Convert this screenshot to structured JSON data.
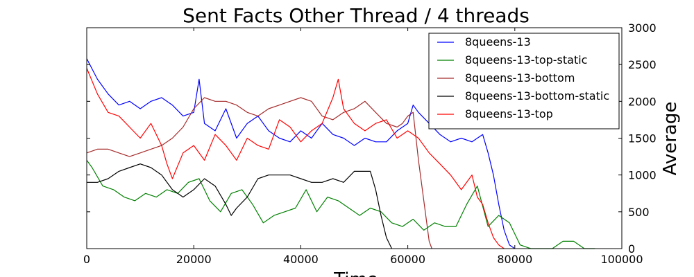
{
  "chart_data": {
    "type": "line",
    "title": "Sent Facts Other Thread / 4 threads",
    "xlabel": "Time",
    "ylabel": "Average",
    "xlim": [
      0,
      100000
    ],
    "ylim": [
      0,
      3000
    ],
    "x_ticks": [
      "0",
      "20000",
      "40000",
      "60000",
      "80000",
      "100000"
    ],
    "y_ticks": [
      "0",
      "500",
      "1000",
      "1500",
      "2000",
      "2500",
      "3000"
    ],
    "y_axis_side": "right",
    "grid": false,
    "legend_position": "top-right",
    "series": [
      {
        "name": "8queens-13",
        "color": "#0000ff",
        "x": [
          0,
          2000,
          4000,
          6000,
          8000,
          10000,
          12000,
          14000,
          16000,
          18000,
          20000,
          21000,
          22000,
          24000,
          26000,
          28000,
          30000,
          32000,
          34000,
          36000,
          38000,
          40000,
          42000,
          44000,
          46000,
          48000,
          50000,
          52000,
          54000,
          56000,
          58000,
          60000,
          61000,
          62000,
          64000,
          66000,
          68000,
          70000,
          72000,
          74000,
          75000,
          76000,
          77000,
          78000,
          79000,
          80000
        ],
        "y": [
          2580,
          2300,
          2100,
          1950,
          2000,
          1900,
          2000,
          2050,
          1950,
          1800,
          1850,
          2300,
          1700,
          1600,
          1900,
          1500,
          1700,
          1800,
          1600,
          1500,
          1450,
          1600,
          1500,
          1700,
          1550,
          1500,
          1400,
          1500,
          1450,
          1450,
          1600,
          1700,
          1950,
          1850,
          1700,
          1550,
          1450,
          1500,
          1450,
          1550,
          1300,
          1000,
          600,
          250,
          50,
          0
        ]
      },
      {
        "name": "8queens-13-top-static",
        "color": "#008000",
        "x": [
          0,
          1000,
          3000,
          5000,
          7000,
          9000,
          11000,
          13000,
          15000,
          17000,
          19000,
          21000,
          23000,
          25000,
          27000,
          29000,
          31000,
          33000,
          35000,
          37000,
          39000,
          41000,
          43000,
          45000,
          47000,
          49000,
          51000,
          53000,
          55000,
          57000,
          59000,
          61000,
          63000,
          65000,
          67000,
          69000,
          71000,
          73000,
          75000,
          77000,
          79000,
          81000,
          83000,
          85000,
          87000,
          89000,
          91000,
          93000,
          95000
        ],
        "y": [
          1200,
          1100,
          850,
          800,
          700,
          650,
          750,
          700,
          800,
          750,
          900,
          950,
          650,
          500,
          750,
          800,
          600,
          350,
          450,
          500,
          550,
          800,
          500,
          700,
          650,
          550,
          450,
          550,
          500,
          350,
          300,
          400,
          250,
          350,
          300,
          300,
          600,
          850,
          300,
          450,
          350,
          50,
          0,
          0,
          0,
          100,
          100,
          0,
          0
        ]
      },
      {
        "name": "8queens-13-bottom",
        "color": "#a52a2a",
        "x": [
          0,
          2000,
          4000,
          6000,
          8000,
          10000,
          12000,
          14000,
          16000,
          18000,
          20000,
          22000,
          24000,
          26000,
          28000,
          30000,
          32000,
          34000,
          36000,
          38000,
          40000,
          42000,
          44000,
          46000,
          48000,
          50000,
          52000,
          54000,
          56000,
          58000,
          59000,
          60000,
          61000,
          62000,
          63000,
          64000,
          64500
        ],
        "y": [
          1300,
          1350,
          1350,
          1300,
          1250,
          1300,
          1350,
          1400,
          1500,
          1650,
          1900,
          2050,
          2000,
          2000,
          1950,
          1850,
          1800,
          1900,
          1950,
          2000,
          2050,
          2000,
          1800,
          1750,
          1850,
          1900,
          2000,
          1850,
          1700,
          1650,
          1700,
          1800,
          1850,
          1200,
          650,
          100,
          0
        ]
      },
      {
        "name": "8queens-13-bottom-static",
        "color": "#000000",
        "x": [
          0,
          2000,
          4000,
          6000,
          8000,
          10000,
          12000,
          14000,
          16000,
          18000,
          20000,
          22000,
          24000,
          26000,
          27000,
          28000,
          30000,
          32000,
          34000,
          36000,
          38000,
          40000,
          42000,
          44000,
          46000,
          48000,
          50000,
          52000,
          53000,
          54000,
          55000,
          56000,
          57000
        ],
        "y": [
          900,
          900,
          950,
          1050,
          1100,
          1150,
          1100,
          1000,
          800,
          700,
          800,
          950,
          850,
          600,
          450,
          550,
          700,
          950,
          1000,
          1000,
          1000,
          950,
          900,
          900,
          950,
          900,
          1050,
          1050,
          1050,
          800,
          450,
          150,
          0
        ]
      },
      {
        "name": "8queens-13-top",
        "color": "#ff0000",
        "x": [
          0,
          2000,
          4000,
          6000,
          8000,
          10000,
          12000,
          14000,
          15000,
          16000,
          18000,
          20000,
          22000,
          24000,
          26000,
          28000,
          30000,
          32000,
          34000,
          36000,
          38000,
          40000,
          42000,
          44000,
          46000,
          47000,
          48000,
          50000,
          52000,
          54000,
          56000,
          58000,
          60000,
          62000,
          64000,
          66000,
          68000,
          70000,
          72000,
          73000,
          74000,
          75000,
          76000,
          77000,
          78000
        ],
        "y": [
          2450,
          2100,
          1850,
          1800,
          1650,
          1500,
          1700,
          1400,
          1150,
          950,
          1300,
          1400,
          1200,
          1550,
          1400,
          1200,
          1500,
          1400,
          1350,
          1750,
          1650,
          1450,
          1600,
          1700,
          2050,
          2300,
          1900,
          1700,
          1600,
          1700,
          1750,
          1500,
          1600,
          1500,
          1300,
          1150,
          1000,
          800,
          1000,
          700,
          600,
          350,
          150,
          50,
          0
        ]
      }
    ]
  }
}
